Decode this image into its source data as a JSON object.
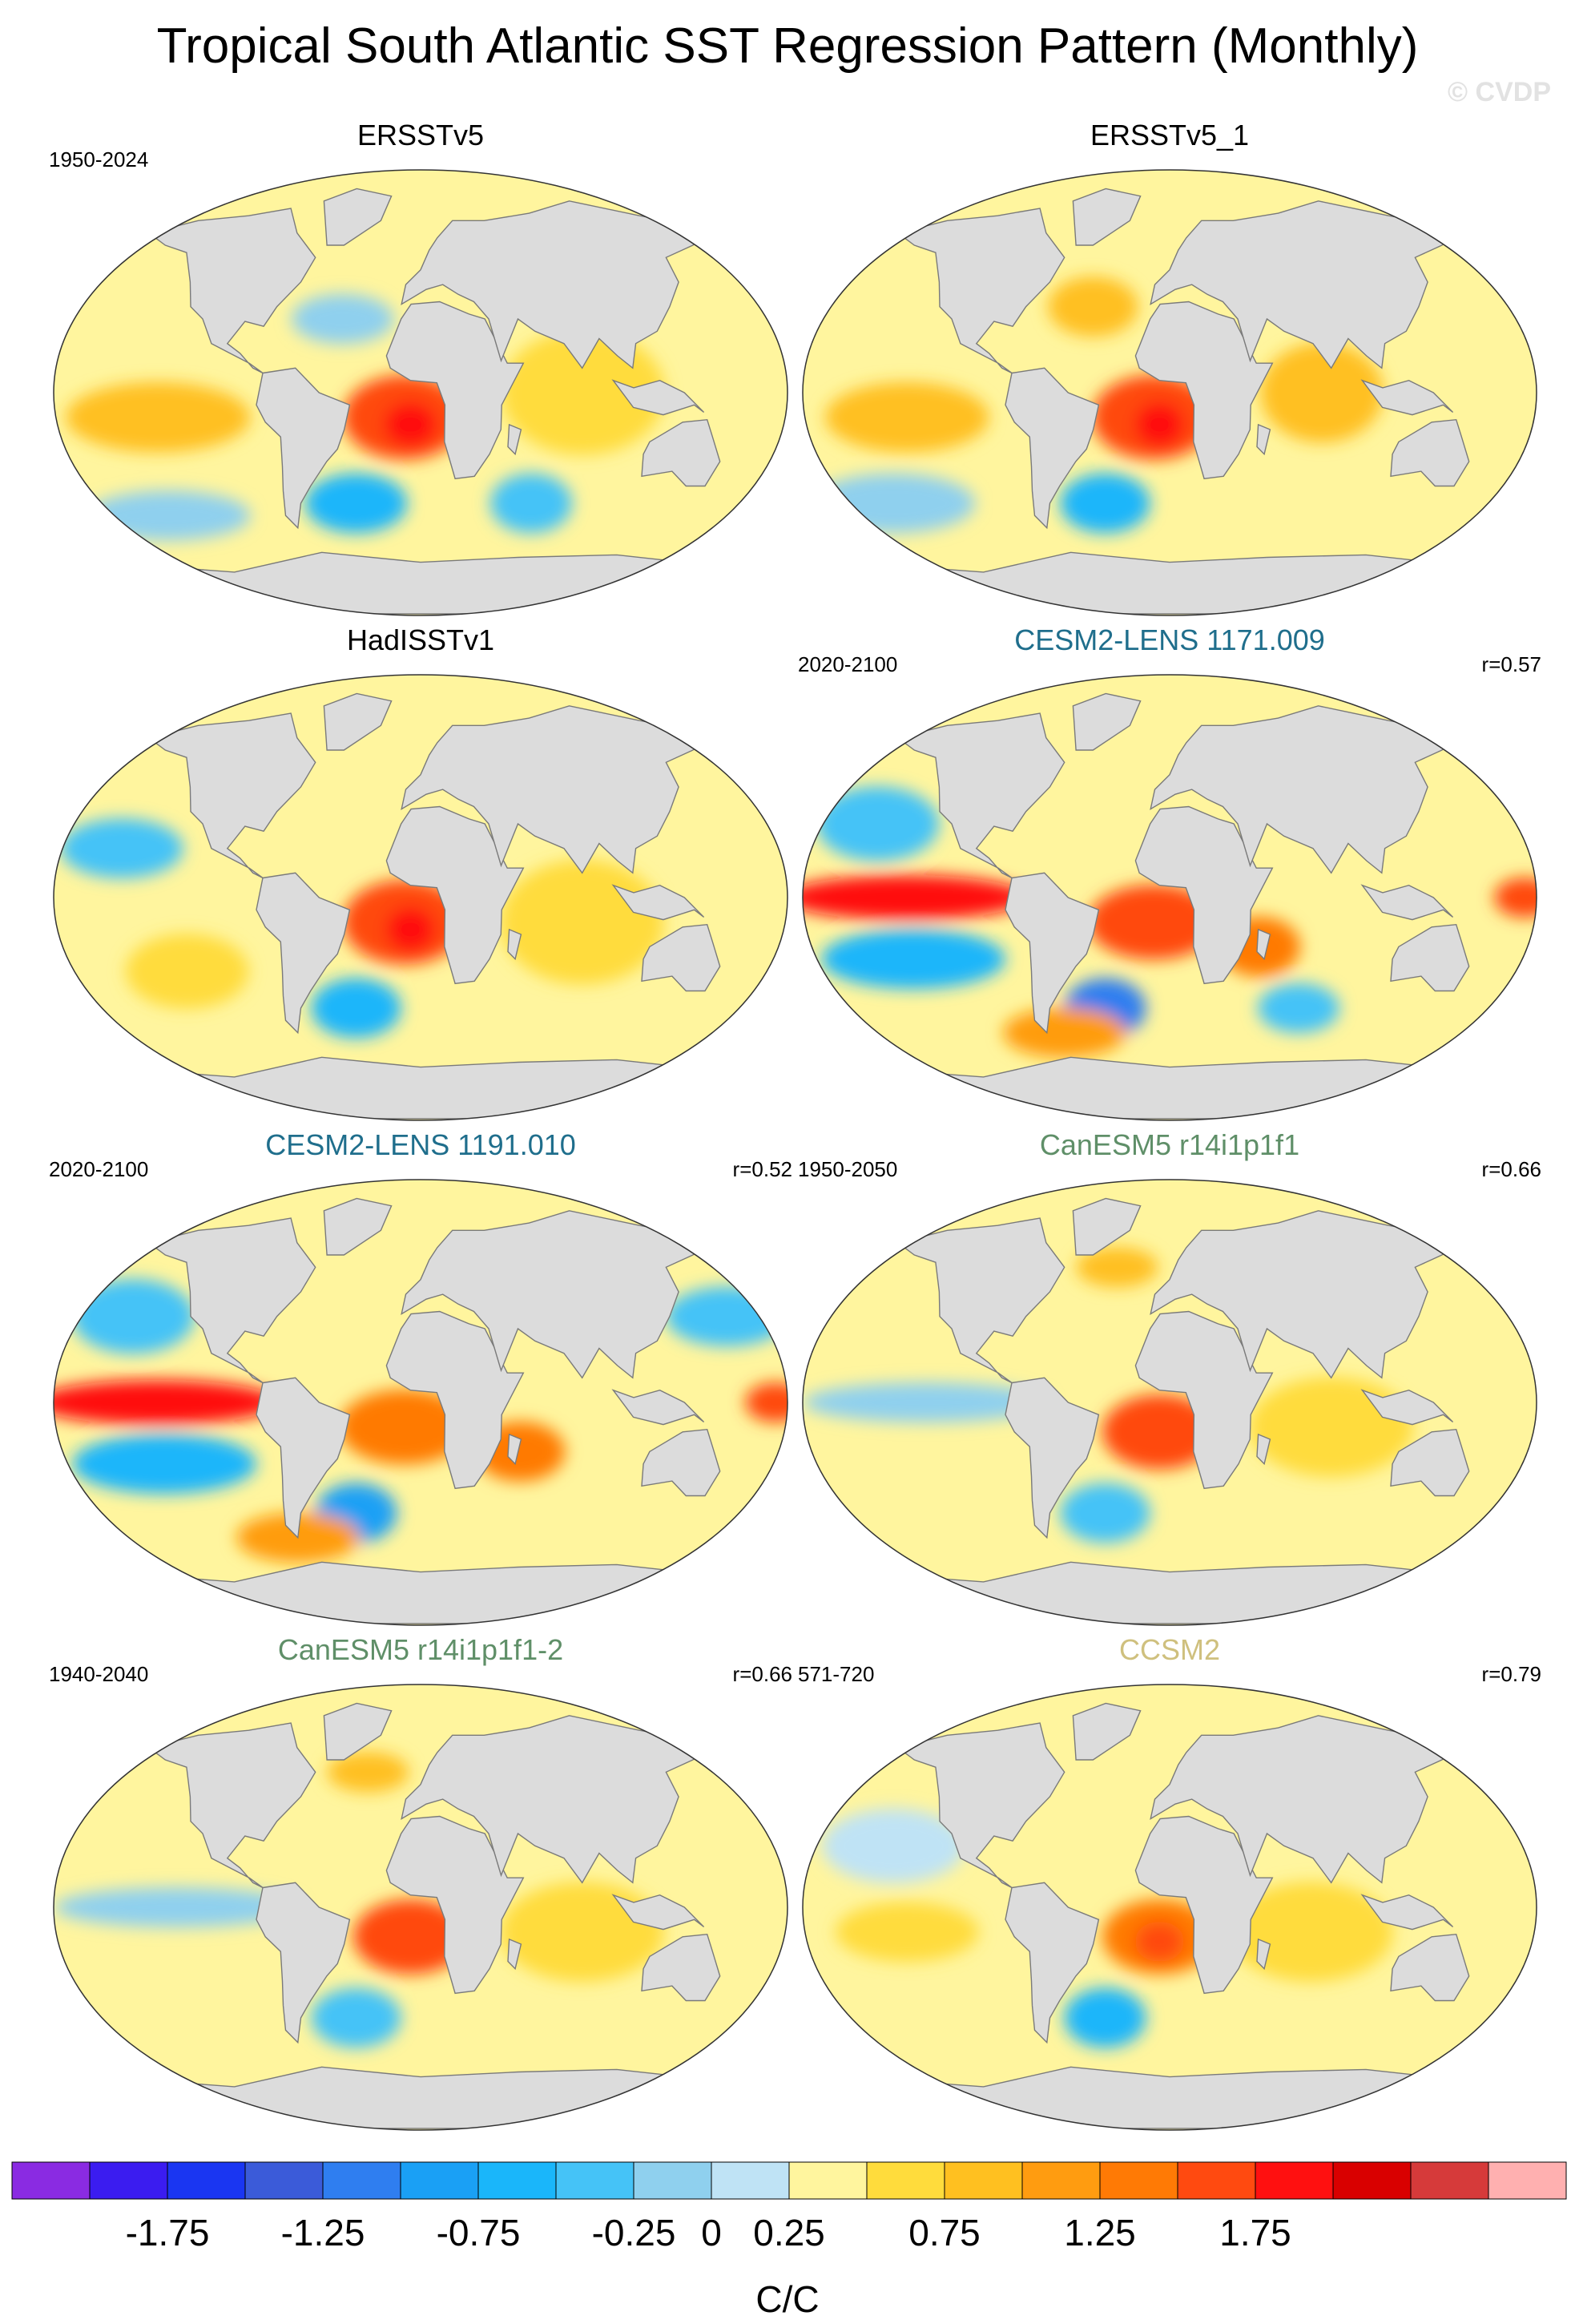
{
  "chart_data": {
    "type": "heatmap",
    "title": "Tropical South Atlantic SST Regression Pattern (Monthly)",
    "watermark": "© CVDP",
    "colors": {
      "land": "#dcdcdc",
      "coast": "#7a7a7a",
      "title_obs": "#000000",
      "title_cesm2": "#1f6e8c",
      "title_canesm5": "#5f8f68",
      "title_ccsm2": "#cfc07e"
    },
    "colorbar": {
      "unit": "C/C",
      "levels": [
        -2.0,
        -1.75,
        -1.5,
        -1.25,
        -1.0,
        -0.75,
        -0.5,
        -0.25,
        0,
        0.25,
        0.5,
        0.75,
        1.0,
        1.25,
        1.5,
        1.75,
        2.0
      ],
      "tick_labels": [
        "-1.75",
        "-1.25",
        "-0.75",
        "-0.25",
        "0",
        "0.25",
        "0.75",
        "1.25",
        "1.75"
      ],
      "tick_values": [
        -1.75,
        -1.25,
        -0.75,
        -0.25,
        0,
        0.25,
        0.75,
        1.25,
        1.75
      ],
      "colors": [
        "#8a2be2",
        "#3b1cf0",
        "#1a36f2",
        "#3b5bd9",
        "#2f7ef0",
        "#1aa0f5",
        "#1ab6fa",
        "#45c3f7",
        "#8fd0ee",
        "#bfe3f5",
        "#fff59e",
        "#ffdc3c",
        "#ffc020",
        "#ff9c10",
        "#ff7a05",
        "#ff4a10",
        "#ff1010",
        "#d90000",
        "#d63a3a",
        "#ffb0b0"
      ]
    },
    "panels": [
      {
        "title": "ERSSTv5",
        "title_color": "title_obs",
        "years": "1950-2024",
        "corr": "",
        "features": [
          {
            "lon": -8,
            "lat": -10,
            "value": 1.25,
            "rx": 30,
            "ry": 17
          },
          {
            "lon": -5,
            "lat": -13,
            "value": 1.5,
            "rx": 13,
            "ry": 9
          },
          {
            "lon": -130,
            "lat": -10,
            "value": 0.5,
            "rx": 45,
            "ry": 14
          },
          {
            "lon": -35,
            "lat": -45,
            "value": -1.0,
            "rx": 25,
            "ry": 12
          },
          {
            "lon": 60,
            "lat": -45,
            "value": -0.75,
            "rx": 20,
            "ry": 12
          },
          {
            "lon": 80,
            "lat": 0,
            "value": 0.25,
            "rx": 40,
            "ry": 25
          },
          {
            "lon": -140,
            "lat": -50,
            "value": -0.5,
            "rx": 40,
            "ry": 10
          },
          {
            "lon": -40,
            "lat": 30,
            "value": -0.5,
            "rx": 25,
            "ry": 10
          }
        ]
      },
      {
        "title": "ERSSTv5_1",
        "title_color": "title_obs",
        "years": "",
        "corr": "",
        "features": [
          {
            "lon": -8,
            "lat": -10,
            "value": 1.25,
            "rx": 30,
            "ry": 17
          },
          {
            "lon": -5,
            "lat": -13,
            "value": 1.5,
            "rx": 12,
            "ry": 9
          },
          {
            "lon": -130,
            "lat": -10,
            "value": 0.5,
            "rx": 40,
            "ry": 14
          },
          {
            "lon": -35,
            "lat": -45,
            "value": -1.0,
            "rx": 22,
            "ry": 12
          },
          {
            "lon": 75,
            "lat": 0,
            "value": 0.5,
            "rx": 30,
            "ry": 20
          },
          {
            "lon": -150,
            "lat": -45,
            "value": -0.5,
            "rx": 40,
            "ry": 12
          },
          {
            "lon": -40,
            "lat": 35,
            "value": 0.5,
            "rx": 22,
            "ry": 12
          }
        ]
      },
      {
        "title": "HadISSTv1",
        "title_color": "title_obs",
        "years": "",
        "corr": "",
        "features": [
          {
            "lon": -8,
            "lat": -10,
            "value": 1.25,
            "rx": 30,
            "ry": 17
          },
          {
            "lon": -5,
            "lat": -13,
            "value": 1.5,
            "rx": 12,
            "ry": 9
          },
          {
            "lon": -35,
            "lat": -45,
            "value": -1.0,
            "rx": 22,
            "ry": 12
          },
          {
            "lon": -150,
            "lat": 20,
            "value": -0.75,
            "rx": 30,
            "ry": 12
          },
          {
            "lon": 80,
            "lat": -10,
            "value": 0.25,
            "rx": 40,
            "ry": 25
          },
          {
            "lon": -120,
            "lat": -30,
            "value": 0.25,
            "rx": 30,
            "ry": 15
          }
        ]
      },
      {
        "title": "CESM2-LENS 1171.009",
        "title_color": "title_cesm2",
        "years": "2020-2100",
        "corr": "r=0.57",
        "features": [
          {
            "lon": -130,
            "lat": 0,
            "value": 1.5,
            "rx": 60,
            "ry": 9
          },
          {
            "lon": -8,
            "lat": -10,
            "value": 1.25,
            "rx": 32,
            "ry": 15
          },
          {
            "lon": 45,
            "lat": -20,
            "value": 1.0,
            "rx": 20,
            "ry": 12
          },
          {
            "lon": -35,
            "lat": -45,
            "value": -1.5,
            "rx": 20,
            "ry": 12
          },
          {
            "lon": -130,
            "lat": -25,
            "value": -1.0,
            "rx": 45,
            "ry": 12
          },
          {
            "lon": -150,
            "lat": 30,
            "value": -0.75,
            "rx": 30,
            "ry": 15
          },
          {
            "lon": -60,
            "lat": -55,
            "value": 0.75,
            "rx": 30,
            "ry": 10
          },
          {
            "lon": 70,
            "lat": -45,
            "value": -0.75,
            "rx": 20,
            "ry": 10
          },
          {
            "lon": 175,
            "lat": 0,
            "value": 1.25,
            "rx": 15,
            "ry": 8
          }
        ]
      },
      {
        "title": "CESM2-LENS 1191.010",
        "title_color": "title_cesm2",
        "years": "2020-2100",
        "corr": "r=0.52",
        "features": [
          {
            "lon": -130,
            "lat": 0,
            "value": 1.5,
            "rx": 60,
            "ry": 9
          },
          {
            "lon": -8,
            "lat": -10,
            "value": 1.0,
            "rx": 32,
            "ry": 15
          },
          {
            "lon": 50,
            "lat": -20,
            "value": 1.0,
            "rx": 22,
            "ry": 12
          },
          {
            "lon": -35,
            "lat": -45,
            "value": -1.25,
            "rx": 20,
            "ry": 12
          },
          {
            "lon": -130,
            "lat": -25,
            "value": -1.0,
            "rx": 45,
            "ry": 12
          },
          {
            "lon": -150,
            "lat": 35,
            "value": -0.75,
            "rx": 30,
            "ry": 15
          },
          {
            "lon": -70,
            "lat": -55,
            "value": 0.75,
            "rx": 30,
            "ry": 10
          },
          {
            "lon": 175,
            "lat": 0,
            "value": 1.25,
            "rx": 15,
            "ry": 8
          },
          {
            "lon": 160,
            "lat": 35,
            "value": -0.75,
            "rx": 30,
            "ry": 12
          }
        ]
      },
      {
        "title": "CanESM5 r14i1p1f1",
        "title_color": "title_canesm5",
        "years": "1950-2050",
        "corr": "r=0.66",
        "features": [
          {
            "lon": -5,
            "lat": -12,
            "value": 1.25,
            "rx": 28,
            "ry": 15
          },
          {
            "lon": -35,
            "lat": -45,
            "value": -0.75,
            "rx": 22,
            "ry": 12
          },
          {
            "lon": -120,
            "lat": 0,
            "value": -0.5,
            "rx": 60,
            "ry": 8
          },
          {
            "lon": 80,
            "lat": -10,
            "value": 0.25,
            "rx": 40,
            "ry": 20
          },
          {
            "lon": -30,
            "lat": 55,
            "value": 0.5,
            "rx": 20,
            "ry": 8
          }
        ]
      },
      {
        "title": "CanESM5 r14i1p1f1-2",
        "title_color": "title_canesm5",
        "years": "1940-2040",
        "corr": "r=0.66",
        "features": [
          {
            "lon": -5,
            "lat": -12,
            "value": 1.25,
            "rx": 28,
            "ry": 15
          },
          {
            "lon": -35,
            "lat": -45,
            "value": -0.75,
            "rx": 22,
            "ry": 12
          },
          {
            "lon": -120,
            "lat": 0,
            "value": -0.5,
            "rx": 60,
            "ry": 8
          },
          {
            "lon": 80,
            "lat": -10,
            "value": 0.25,
            "rx": 40,
            "ry": 20
          },
          {
            "lon": -30,
            "lat": 55,
            "value": 0.5,
            "rx": 20,
            "ry": 8
          }
        ]
      },
      {
        "title": "CCSM2",
        "title_color": "title_ccsm2",
        "years": "571-720",
        "corr": "r=0.79",
        "features": [
          {
            "lon": -5,
            "lat": -12,
            "value": 1.0,
            "rx": 28,
            "ry": 15
          },
          {
            "lon": -5,
            "lat": -14,
            "value": 1.25,
            "rx": 12,
            "ry": 8
          },
          {
            "lon": -35,
            "lat": -45,
            "value": -1.0,
            "rx": 20,
            "ry": 12
          },
          {
            "lon": -140,
            "lat": 25,
            "value": -0.25,
            "rx": 35,
            "ry": 15
          },
          {
            "lon": 70,
            "lat": -10,
            "value": 0.25,
            "rx": 40,
            "ry": 20
          },
          {
            "lon": -130,
            "lat": -10,
            "value": 0.25,
            "rx": 35,
            "ry": 12
          }
        ]
      }
    ]
  }
}
